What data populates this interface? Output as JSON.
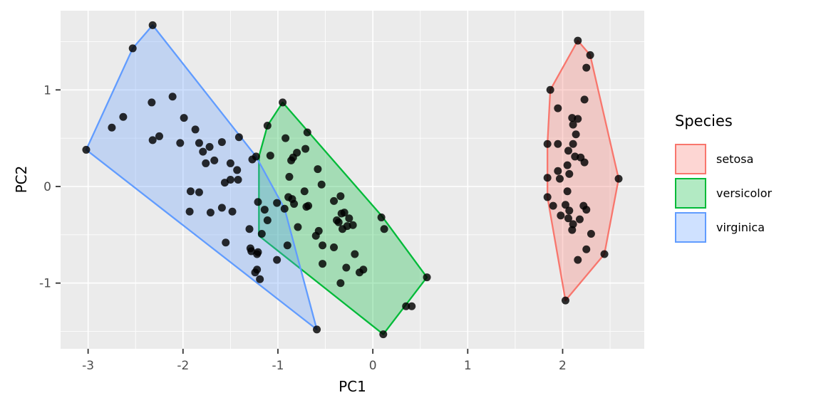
{
  "figure": {
    "background": "#FFFFFF",
    "panel_background": "#EBEBEB",
    "grid_color": "#FFFFFF",
    "tick_mark_color": "#333333",
    "tick_label_color": "#4D4D4D",
    "point_color": "#000000",
    "point_opacity": 0.82
  },
  "chart_data": {
    "type": "scatter",
    "title": "",
    "xlabel": "PC1",
    "ylabel": "PC2",
    "xlim": [
      -3.29,
      2.86
    ],
    "ylim": [
      -1.68,
      1.82
    ],
    "x_ticks": [
      -3,
      -2,
      -1,
      0,
      1,
      2
    ],
    "y_ticks": [
      -1,
      0,
      1
    ],
    "x_minor_ticks": [
      -2.5,
      -1.5,
      -0.5,
      0.5,
      1.5,
      2.5
    ],
    "y_minor_ticks": [
      -1.5,
      -0.5,
      0.5,
      1.5
    ],
    "grid": true,
    "legend_title": "Species",
    "legend_position": "right",
    "series": [
      {
        "name": "setosa",
        "color": "#F8766D",
        "fill_opacity": 0.3,
        "hull": [
          [
            2.16,
            1.51
          ],
          [
            2.29,
            1.36
          ],
          [
            2.59,
            0.08
          ],
          [
            2.44,
            -0.7
          ],
          [
            2.03,
            -1.18
          ],
          [
            1.84,
            -0.11
          ],
          [
            1.84,
            0.44
          ],
          [
            1.87,
            1.0
          ]
        ],
        "points": [
          [
            2.16,
            1.51
          ],
          [
            2.29,
            1.36
          ],
          [
            2.25,
            1.23
          ],
          [
            1.87,
            1.0
          ],
          [
            2.23,
            0.9
          ],
          [
            1.95,
            0.81
          ],
          [
            2.1,
            0.71
          ],
          [
            2.16,
            0.7
          ],
          [
            2.11,
            0.64
          ],
          [
            2.14,
            0.54
          ],
          [
            1.84,
            0.44
          ],
          [
            1.95,
            0.44
          ],
          [
            2.11,
            0.44
          ],
          [
            2.06,
            0.37
          ],
          [
            2.13,
            0.31
          ],
          [
            2.19,
            0.3
          ],
          [
            2.23,
            0.25
          ],
          [
            2.05,
            0.22
          ],
          [
            1.95,
            0.16
          ],
          [
            2.07,
            0.13
          ],
          [
            1.97,
            0.08
          ],
          [
            1.84,
            0.09
          ],
          [
            2.59,
            0.08
          ],
          [
            1.84,
            -0.11
          ],
          [
            2.05,
            -0.05
          ],
          [
            1.9,
            -0.2
          ],
          [
            2.03,
            -0.19
          ],
          [
            2.22,
            -0.2
          ],
          [
            2.25,
            -0.24
          ],
          [
            2.07,
            -0.25
          ],
          [
            1.98,
            -0.3
          ],
          [
            2.06,
            -0.33
          ],
          [
            2.18,
            -0.34
          ],
          [
            2.11,
            -0.39
          ],
          [
            2.1,
            -0.45
          ],
          [
            2.3,
            -0.49
          ],
          [
            2.25,
            -0.65
          ],
          [
            2.44,
            -0.7
          ],
          [
            2.16,
            -0.76
          ],
          [
            2.03,
            -1.18
          ]
        ]
      },
      {
        "name": "versicolor",
        "color": "#00BA38",
        "fill_opacity": 0.3,
        "hull": [
          [
            -0.95,
            0.87
          ],
          [
            0.09,
            -0.3
          ],
          [
            0.57,
            -0.94
          ],
          [
            0.11,
            -1.53
          ],
          [
            -1.2,
            -0.51
          ],
          [
            -1.2,
            0.31
          ],
          [
            -1.11,
            0.63
          ]
        ],
        "points": [
          [
            -0.95,
            0.87
          ],
          [
            -1.11,
            0.63
          ],
          [
            -0.69,
            0.56
          ],
          [
            -0.92,
            0.5
          ],
          [
            -0.71,
            0.39
          ],
          [
            -0.8,
            0.35
          ],
          [
            -0.84,
            0.3
          ],
          [
            -0.86,
            0.27
          ],
          [
            -1.08,
            0.32
          ],
          [
            -0.58,
            0.18
          ],
          [
            -0.88,
            0.1
          ],
          [
            -0.54,
            0.02
          ],
          [
            -0.72,
            -0.05
          ],
          [
            -0.89,
            -0.11
          ],
          [
            -1.01,
            -0.17
          ],
          [
            -1.14,
            -0.24
          ],
          [
            -0.85,
            -0.13
          ],
          [
            -0.83,
            -0.18
          ],
          [
            -0.7,
            -0.21
          ],
          [
            -0.68,
            -0.2
          ],
          [
            -1.11,
            -0.35
          ],
          [
            -0.41,
            -0.15
          ],
          [
            -0.34,
            -0.1
          ],
          [
            -0.79,
            -0.42
          ],
          [
            -0.57,
            -0.46
          ],
          [
            -0.6,
            -0.51
          ],
          [
            -0.33,
            -0.28
          ],
          [
            -0.3,
            -0.27
          ],
          [
            -0.25,
            -0.33
          ],
          [
            -0.38,
            -0.35
          ],
          [
            -0.36,
            -0.37
          ],
          [
            -0.32,
            -0.44
          ],
          [
            -0.27,
            -0.41
          ],
          [
            -0.21,
            -0.4
          ],
          [
            0.09,
            -0.32
          ],
          [
            0.12,
            -0.44
          ],
          [
            -0.53,
            -0.61
          ],
          [
            -0.41,
            -0.63
          ],
          [
            -0.9,
            -0.61
          ],
          [
            -0.19,
            -0.7
          ],
          [
            -0.53,
            -0.8
          ],
          [
            -0.28,
            -0.84
          ],
          [
            -0.1,
            -0.86
          ],
          [
            -0.14,
            -0.89
          ],
          [
            -0.34,
            -1.0
          ],
          [
            0.35,
            -1.24
          ],
          [
            0.41,
            -1.24
          ],
          [
            0.57,
            -0.94
          ],
          [
            0.11,
            -1.53
          ]
        ]
      },
      {
        "name": "virginica",
        "color": "#619CFF",
        "fill_opacity": 0.3,
        "hull": [
          [
            -2.32,
            1.67
          ],
          [
            -1.23,
            0.31
          ],
          [
            -0.93,
            -0.23
          ],
          [
            -0.59,
            -1.48
          ],
          [
            -3.02,
            0.38
          ],
          [
            -2.53,
            1.43
          ]
        ],
        "points": [
          [
            -3.02,
            0.38
          ],
          [
            -2.53,
            1.43
          ],
          [
            -2.32,
            1.67
          ],
          [
            -2.75,
            0.61
          ],
          [
            -2.63,
            0.72
          ],
          [
            -2.33,
            0.87
          ],
          [
            -2.11,
            0.93
          ],
          [
            -1.99,
            0.71
          ],
          [
            -1.87,
            0.59
          ],
          [
            -2.32,
            0.48
          ],
          [
            -2.25,
            0.52
          ],
          [
            -2.03,
            0.45
          ],
          [
            -1.83,
            0.45
          ],
          [
            -1.79,
            0.36
          ],
          [
            -1.72,
            0.41
          ],
          [
            -1.67,
            0.27
          ],
          [
            -1.59,
            0.46
          ],
          [
            -1.76,
            0.24
          ],
          [
            -1.5,
            0.24
          ],
          [
            -1.43,
            0.17
          ],
          [
            -1.41,
            0.51
          ],
          [
            -1.27,
            0.28
          ],
          [
            -1.23,
            0.31
          ],
          [
            -1.56,
            0.04
          ],
          [
            -1.5,
            0.07
          ],
          [
            -1.42,
            0.07
          ],
          [
            -1.92,
            -0.05
          ],
          [
            -1.83,
            -0.06
          ],
          [
            -1.93,
            -0.26
          ],
          [
            -1.71,
            -0.27
          ],
          [
            -1.59,
            -0.22
          ],
          [
            -1.48,
            -0.26
          ],
          [
            -1.21,
            -0.16
          ],
          [
            -0.93,
            -0.23
          ],
          [
            -1.3,
            -0.44
          ],
          [
            -1.55,
            -0.58
          ],
          [
            -1.17,
            -0.49
          ],
          [
            -1.28,
            -0.67
          ],
          [
            -1.22,
            -0.7
          ],
          [
            -1.29,
            -0.64
          ],
          [
            -1.21,
            -0.68
          ],
          [
            -1.01,
            -0.76
          ],
          [
            -1.22,
            -0.86
          ],
          [
            -1.24,
            -0.89
          ],
          [
            -1.19,
            -0.96
          ],
          [
            -0.59,
            -1.48
          ]
        ]
      }
    ]
  }
}
